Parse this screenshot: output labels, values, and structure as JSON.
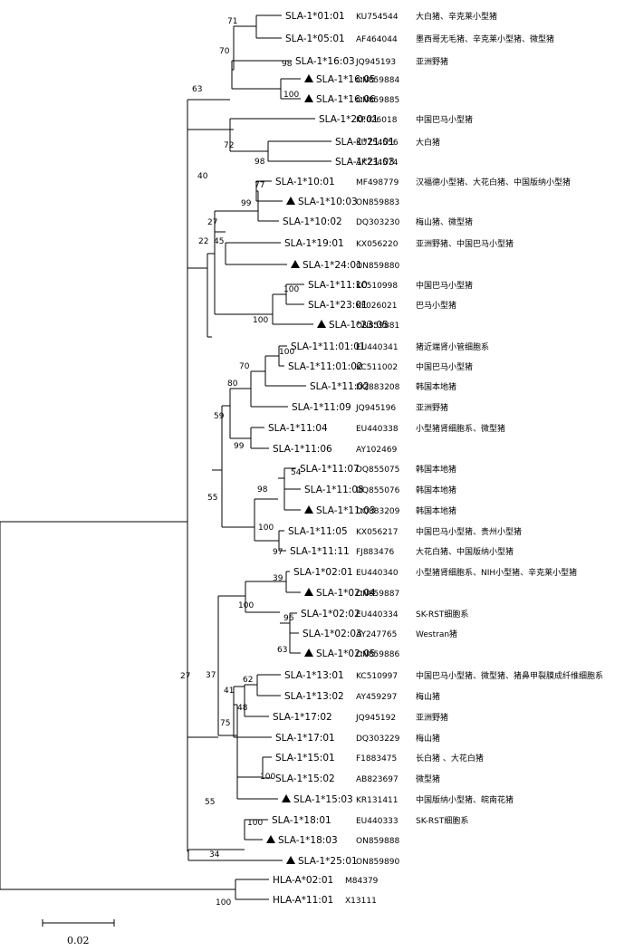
{
  "tree": {
    "labels": [
      {
        "name": "SLA-1*01:01",
        "accession": "KU754544",
        "source": "大白猪、辛克莱小型猪",
        "marked": false
      },
      {
        "name": "SLA-1*05:01",
        "accession": "AF464044",
        "source": "墨西哥无毛猪、辛克莱小型猪、微型猪",
        "marked": false
      },
      {
        "name": "SLA-1*16:03",
        "accession": "JQ945193",
        "source": "亚洲野猪",
        "marked": false
      },
      {
        "name": "SLA-1*16:05",
        "accession": "ON859884",
        "source": "",
        "marked": true
      },
      {
        "name": "SLA-1*16:06",
        "accession": "ON859885",
        "source": "",
        "marked": true
      },
      {
        "name": "SLA-1*20:01",
        "accession": "KF026018",
        "source": "中国巴马小型猪",
        "marked": false
      },
      {
        "name": "SLA-1*21:01",
        "accession": "KU754556",
        "source": "大白猪",
        "marked": false
      },
      {
        "name": "SLA-1*21:03",
        "accession": "AK234574",
        "source": "",
        "marked": false
      },
      {
        "name": "SLA-1*10:01",
        "accession": "MF498779",
        "source": "汉福德小型猪、大花白猪、中国版纳小型猪",
        "marked": false
      },
      {
        "name": "SLA-1*10:03",
        "accession": "ON859883",
        "source": "",
        "marked": true
      },
      {
        "name": "SLA-1*10:02",
        "accession": "DQ303230",
        "source": "梅山猪、微型猪",
        "marked": false
      },
      {
        "name": "SLA-1*19:01",
        "accession": "KX056220",
        "source": "亚洲野猪、中国巴马小型猪",
        "marked": false
      },
      {
        "name": "SLA-1*24:01",
        "accession": "ON859880",
        "source": "",
        "marked": true
      },
      {
        "name": "SLA-1*11:10",
        "accession": "KC510998",
        "source": "中国巴马小型猪",
        "marked": false
      },
      {
        "name": "SLA-1*23:01",
        "accession": "KF026021",
        "source": "巴马小型猪",
        "marked": false
      },
      {
        "name": "SLA-1*23:05",
        "accession": "ON859881",
        "source": "",
        "marked": true
      },
      {
        "name": "SLA-1*11:01:01",
        "accession": "EU440341",
        "source": "猪近端肾小管细胞系",
        "marked": false
      },
      {
        "name": "SLA-1*11:01:02",
        "accession": "KC511002",
        "source": "中国巴马小型猪",
        "marked": false
      },
      {
        "name": "SLA-1*11:02",
        "accession": "DQ883208",
        "source": "韩国本地猪",
        "marked": false
      },
      {
        "name": "SLA-1*11:09",
        "accession": "JQ945196",
        "source": "亚洲野猪",
        "marked": false
      },
      {
        "name": "SLA-1*11:04",
        "accession": "EU440338",
        "source": "小型猪肾细胞系、微型猪",
        "marked": false
      },
      {
        "name": "SLA-1*11:06",
        "accession": "AY102469",
        "source": "",
        "marked": false
      },
      {
        "name": "SLA-1*11:07",
        "accession": "DQ855075",
        "source": "韩国本地猪",
        "marked": false
      },
      {
        "name": "SLA-1*11:08",
        "accession": "DQ855076",
        "source": "韩国本地猪",
        "marked": false
      },
      {
        "name": "SLA-1*11:03",
        "accession": "DQ883209",
        "source": "韩国本地猪",
        "marked": true
      },
      {
        "name": "SLA-1*11:05",
        "accession": "KX056217",
        "source": "中国巴马小型猪、贵州小型猪",
        "marked": false
      },
      {
        "name": "SLA-1*11:11",
        "accession": "FJ883476",
        "source": "大花白猪、中国版纳小型猪",
        "marked": false
      },
      {
        "name": "SLA-1*02:01",
        "accession": "EU440340",
        "source": "小型猪肾细胞系、NIH小型猪、辛克莱小型猪",
        "marked": false
      },
      {
        "name": "SLA-1*02:04",
        "accession": "ON859887",
        "source": "",
        "marked": true
      },
      {
        "name": "SLA-1*02:02",
        "accession": "EU440334",
        "source": "SK-RST细胞系",
        "marked": false
      },
      {
        "name": "SLA-1*02:03",
        "accession": "AY247765",
        "source": "Westran猪",
        "marked": false
      },
      {
        "name": "SLA-1*02:05",
        "accession": "ON859886",
        "source": "",
        "marked": true
      },
      {
        "name": "SLA-1*13:01",
        "accession": "KC510997",
        "source": "中国巴马小型猪、微型猪、猪鼻甲裂膜成纤维细胞系",
        "marked": false
      },
      {
        "name": "SLA-1*13:02",
        "accession": "AY459297",
        "source": "梅山猪",
        "marked": false
      },
      {
        "name": "SLA-1*17:02",
        "accession": "JQ945192",
        "source": "亚洲野猪",
        "marked": false
      },
      {
        "name": "SLA-1*17:01",
        "accession": "DQ303229",
        "source": "梅山猪",
        "marked": false
      },
      {
        "name": "SLA-1*15:01",
        "accession": "F1883475",
        "source": "长白猪 、大花白猪",
        "marked": false
      },
      {
        "name": "SLA-1*15:02",
        "accession": "AB823697",
        "source": "微型猪",
        "marked": false
      },
      {
        "name": "SLA-1*15:03",
        "accession": "KR131411",
        "source": "中国版纳小型猪、皖南花猪",
        "marked": true
      },
      {
        "name": "SLA-1*18:01",
        "accession": "EU440333",
        "source": "SK-RST细胞系",
        "marked": false
      },
      {
        "name": "SLA-1*18:03",
        "accession": "ON859888",
        "source": "",
        "marked": true
      },
      {
        "name": "SLA-1*25:01",
        "accession": "ON859890",
        "source": "",
        "marked": true
      },
      {
        "name": "HLA-A*02:01",
        "accession": "M84379",
        "source": "",
        "marked": false
      },
      {
        "name": "HLA-A*11:01",
        "accession": "X13111",
        "source": "",
        "marked": false
      }
    ],
    "bootstrap": [
      "71",
      "70",
      "98",
      "100",
      "63",
      "72",
      "98",
      "40",
      "77",
      "99",
      "27",
      "22",
      "45",
      "100",
      "100",
      "70",
      "100",
      "80",
      "59",
      "99",
      "54",
      "98",
      "55",
      "100",
      "97",
      "39",
      "100",
      "96",
      "63",
      "37",
      "62",
      "41",
      "48",
      "75",
      "100",
      "55",
      "100",
      "34",
      "27",
      "100"
    ],
    "scale_label": "0.02"
  }
}
